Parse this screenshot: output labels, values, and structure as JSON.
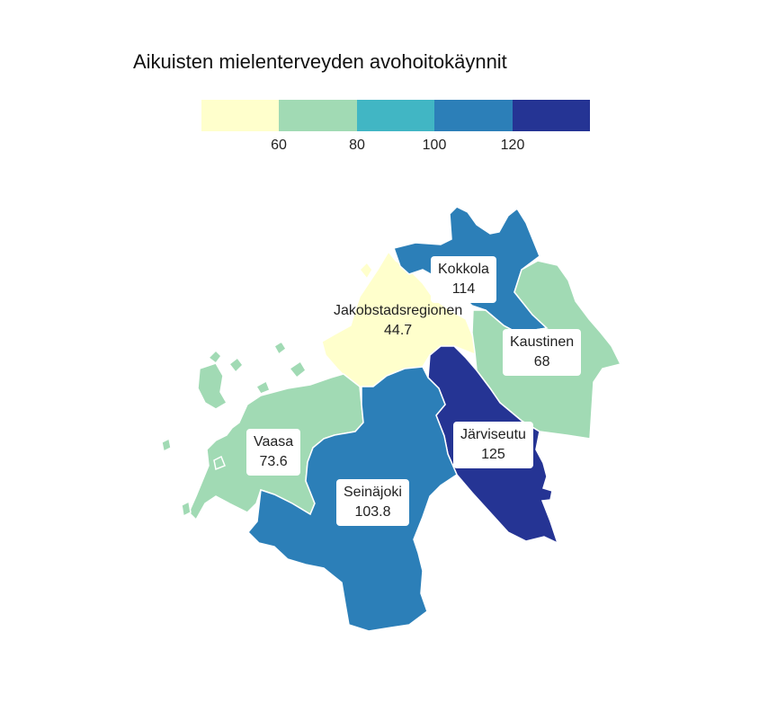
{
  "map": {
    "title": "Aikuisten mielenterveyden avohoitokäynnit",
    "legend": {
      "bins": [
        {
          "color": "#ffffcc"
        },
        {
          "color": "#a1dab4"
        },
        {
          "color": "#41b6c4"
        },
        {
          "color": "#2c7fb8"
        },
        {
          "color": "#253494"
        }
      ],
      "ticks": [
        "60",
        "80",
        "100",
        "120"
      ]
    },
    "regions": [
      {
        "name": "Kokkola",
        "value": "114",
        "color": "#2c7fb8"
      },
      {
        "name": "Jakobstadsregionen",
        "value": "44.7",
        "color": "#ffffcc"
      },
      {
        "name": "Kaustinen",
        "value": "68",
        "color": "#a1dab4"
      },
      {
        "name": "Vaasa",
        "value": "73.6",
        "color": "#a1dab4"
      },
      {
        "name": "Seinäjoki",
        "value": "103.8",
        "color": "#2c7fb8"
      },
      {
        "name": "Järviseutu",
        "value": "125",
        "color": "#253494"
      }
    ]
  }
}
